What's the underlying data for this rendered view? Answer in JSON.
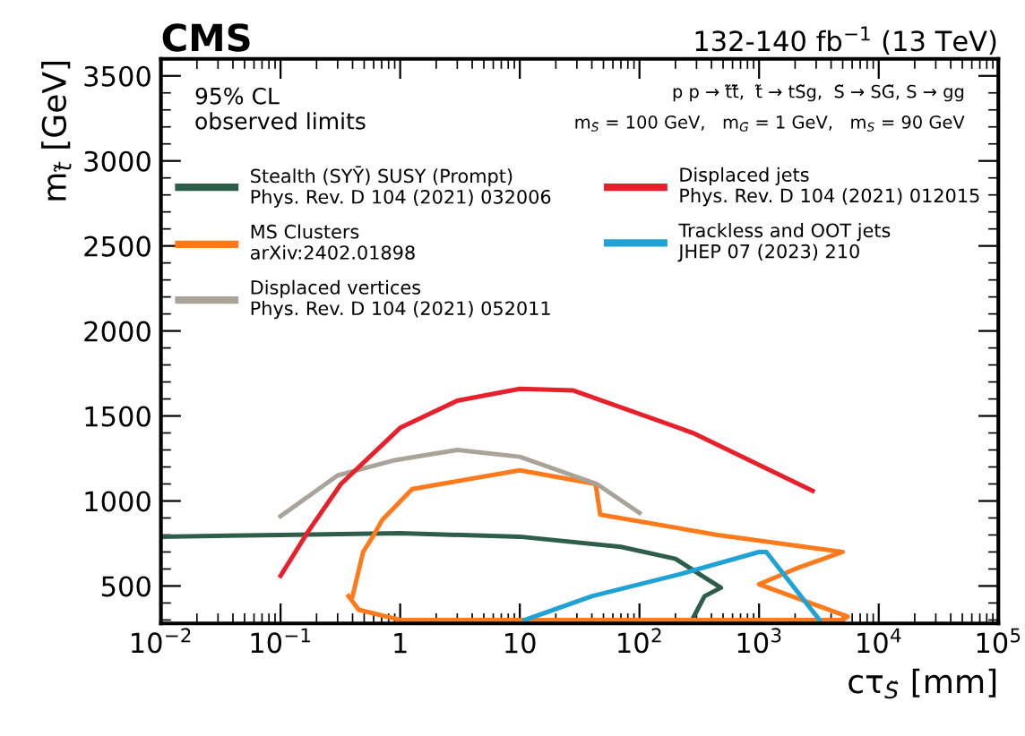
{
  "chart_data": {
    "type": "line",
    "title": "CMS",
    "subtitle": "132-140 fb$^{−1}$ (13 TeV)",
    "xlabel": "cτ$_{S̃}$ [mm]",
    "ylabel": "m$_{t̃}$ [GeV]",
    "log": "x",
    "xlim": [
      0.01,
      100000
    ],
    "ylim": [
      280,
      3600
    ],
    "xticks": [
      {
        "value": 0.01,
        "label": "10$^{−2}$"
      },
      {
        "value": 0.1,
        "label": "10$^{−1}$"
      },
      1,
      10,
      {
        "value": 100,
        "label": "10$^{2}$"
      },
      {
        "value": 1000,
        "label": "10$^{3}$"
      },
      {
        "value": 10000,
        "label": "10$^{4}$"
      },
      {
        "value": 100000,
        "label": "10$^{5}$"
      }
    ],
    "yticks": [
      500,
      1000,
      1500,
      2000,
      2500,
      3000,
      3500
    ],
    "grid": false,
    "legend": "top",
    "marker": "none",
    "line_style": "solid",
    "annotations": [
      "95% CL\nobserved limits",
      "p p → t̃t̃̄,  t̃ → tS̃g,  S̃ → SG̃, S → gg",
      "m$_{S̃}$ = 100 GeV,   m$_{G̃}$ = 1 GeV,   m$_{S}$ = 90 GeV"
    ],
    "series": [
      {
        "name": "Stealth (SYȲ) SUSY (Prompt)\nPhys. Rev. D 104 (2021) 032006",
        "color": "#2e5e4a",
        "x": [
          0.01,
          0.1,
          1,
          10,
          70,
          200,
          350,
          480,
          350,
          280
        ],
        "values": [
          790,
          800,
          810,
          790,
          730,
          660,
          550,
          490,
          440,
          310
        ]
      },
      {
        "name": "MS Clusters\narXiv:2402.01898",
        "color": "#ff7a1a",
        "x": [
          0.4,
          0.49,
          0.59,
          0.71,
          1.26,
          2.2,
          10,
          43,
          47,
          450,
          5000,
          2000,
          1000,
          5500,
          5000,
          1,
          0.45,
          0.37
        ],
        "values": [
          440,
          700,
          790,
          890,
          1070,
          1100,
          1180,
          1100,
          920,
          800,
          700,
          600,
          510,
          320,
          300,
          300,
          360,
          440
        ]
      },
      {
        "name": "Displaced vertices\nPhys. Rev. D 104 (2021) 052011",
        "color": "#aaa39a",
        "x": [
          0.1,
          0.3,
          0.9,
          3,
          10,
          44,
          100
        ],
        "values": [
          910,
          1150,
          1240,
          1300,
          1260,
          1100,
          930
        ]
      },
      {
        "name": "Displaced jets\nPhys. Rev. D 104 (2021) 012015",
        "color": "#e8202c",
        "x": [
          0.1,
          0.17,
          0.32,
          1,
          3,
          10,
          28,
          280,
          2800
        ],
        "values": [
          560,
          820,
          1100,
          1430,
          1590,
          1660,
          1650,
          1400,
          1060
        ]
      },
      {
        "name": "Trackless and OOT jets\nJHEP 07 (2023) 210",
        "color": "#1fa2d6",
        "x": [
          11,
          40,
          220,
          1000,
          1150,
          3200
        ],
        "values": [
          300,
          440,
          570,
          700,
          700,
          300
        ]
      }
    ]
  }
}
